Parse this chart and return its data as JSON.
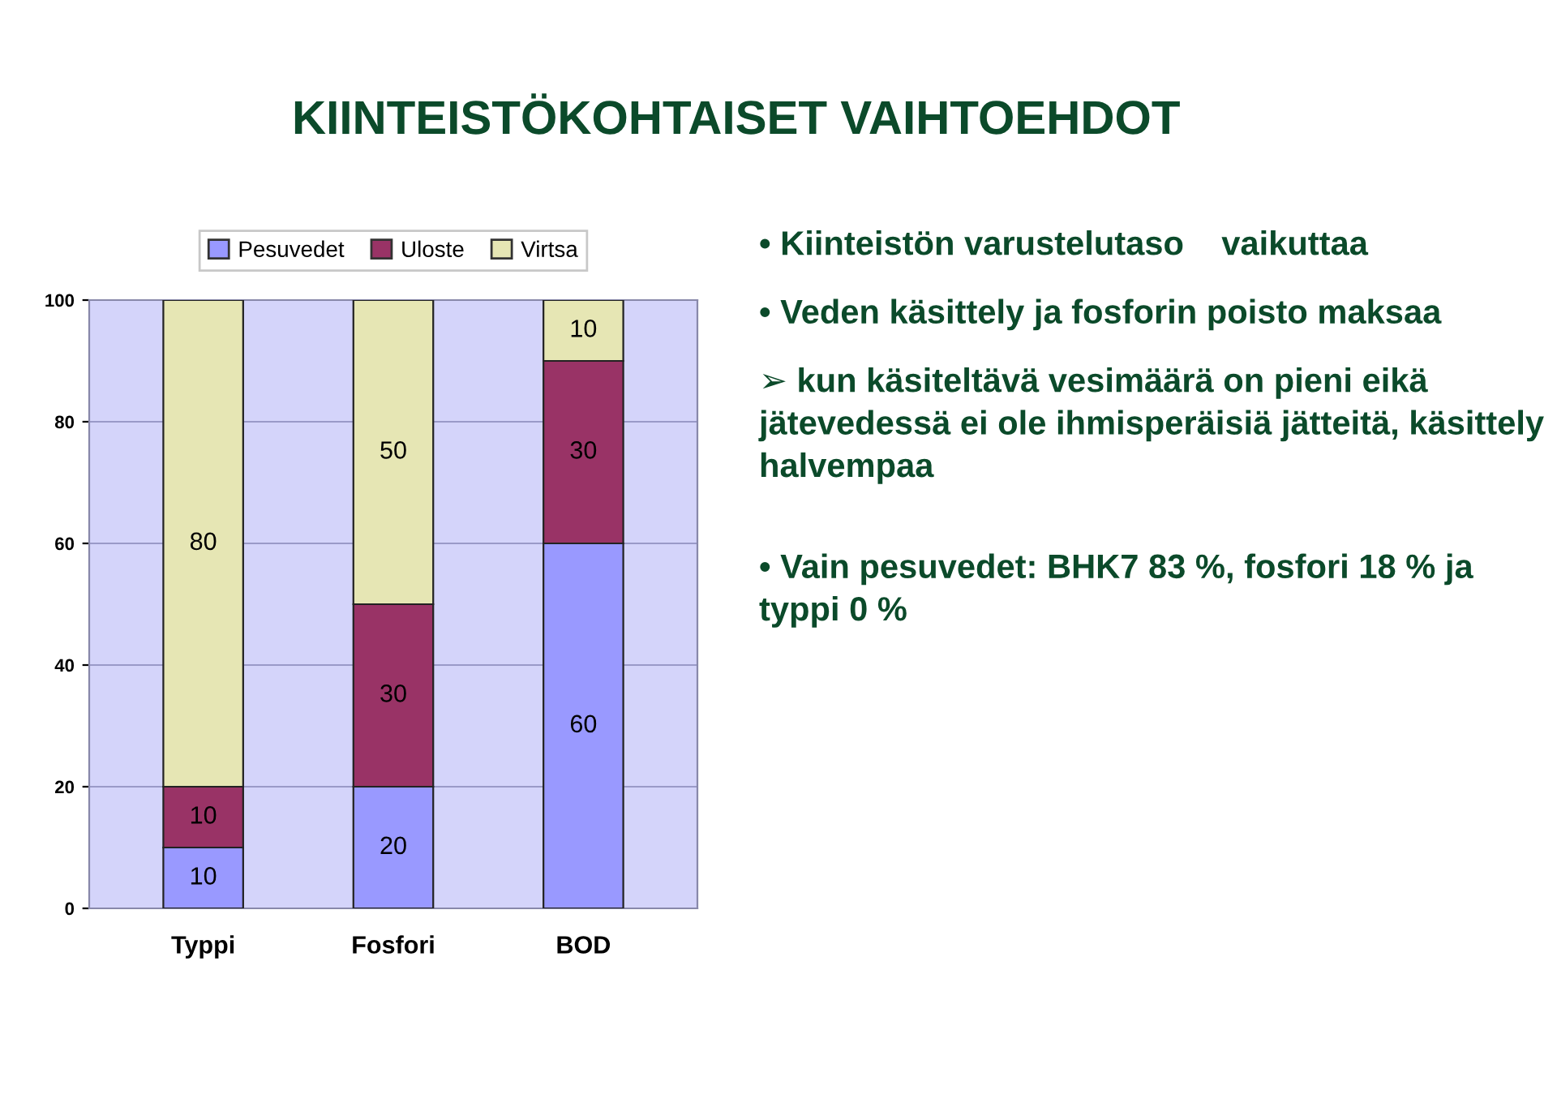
{
  "chart_data": {
    "type": "bar",
    "title": "KIINTEISTÖKOHTAISET VAIHTOEHDOT",
    "categories": [
      "Typpi",
      "Fosfori",
      "BOD"
    ],
    "series": [
      {
        "name": "Pesuvedet",
        "color": "#9999ff",
        "values": [
          10,
          20,
          60
        ]
      },
      {
        "name": "Uloste",
        "color": "#993366",
        "values": [
          10,
          30,
          30
        ]
      },
      {
        "name": "Virtsa",
        "color": "#e6e6b4",
        "values": [
          80,
          50,
          10
        ]
      }
    ],
    "stacked": true,
    "ylim": [
      0,
      100
    ],
    "yticks": [
      0,
      20,
      40,
      60,
      80,
      100
    ],
    "grid": "y",
    "legend": "top",
    "data_labels": true,
    "annotations": [
      "• Kiinteistön varustelutaso    vaikuttaa",
      "• Veden käsittely ja fosforin poisto maksaa",
      "➢ kun käsiteltävä vesimäärä on pieni eikä jätevedessä ei ole ihmisperäisiä jätteitä, käsittely halvempaa",
      "• Vain pesuvedet: BHK7 83 %, fosfori 18 % ja typpi 0 %"
    ]
  }
}
